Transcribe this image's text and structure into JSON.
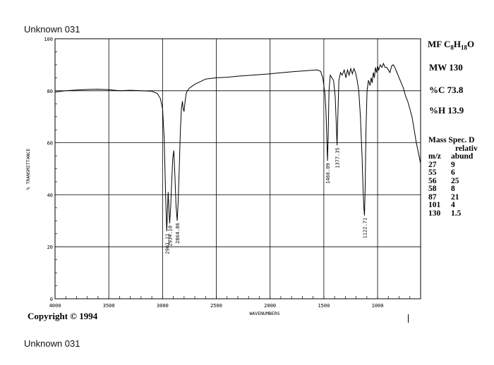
{
  "top_caption": "Unknown 031",
  "bottom_caption": "Unknown 031",
  "copyright": "Copyright  ©  1994",
  "side_panel": {
    "mf_label": "MF C",
    "mf_sub1": "8",
    "mf_mid": "H",
    "mf_sub2": "18",
    "mf_end": "O",
    "mw": "MW 130",
    "pct_c": "%C 73.8",
    "pct_h": "%H 13.9"
  },
  "mass_spec": {
    "title": "Mass Spec. D",
    "col2_header": "relativ",
    "col1_header": "m/z",
    "col2_header2": "abund",
    "rows": [
      {
        "mz": "27",
        "abund": "9"
      },
      {
        "mz": "55",
        "abund": "6"
      },
      {
        "mz": "56",
        "abund": "25"
      },
      {
        "mz": "58",
        "abund": "8"
      },
      {
        "mz": "87",
        "abund": "21"
      },
      {
        "mz": "101",
        "abund": "4"
      },
      {
        "mz": "130",
        "abund": "1.5"
      }
    ]
  },
  "chart_data": {
    "type": "line",
    "xlabel": "WAVENUMBERS",
    "ylabel": "% TRANSMITTANCE",
    "xlim": [
      4000,
      600
    ],
    "ylim": [
      0,
      100
    ],
    "x_ticks": [
      {
        "value": 4000,
        "label": "4000"
      },
      {
        "value": 3500,
        "label": "3500"
      },
      {
        "value": 3000,
        "label": "3000"
      },
      {
        "value": 2500,
        "label": "2500"
      },
      {
        "value": 2000,
        "label": "2000"
      },
      {
        "value": 1500,
        "label": "1500"
      },
      {
        "value": 1000,
        "label": "1000"
      }
    ],
    "y_ticks": [
      {
        "value": 0,
        "label": "0"
      },
      {
        "value": 20,
        "label": "20"
      },
      {
        "value": 40,
        "label": "40"
      },
      {
        "value": 60,
        "label": "60"
      },
      {
        "value": 80,
        "label": "80"
      },
      {
        "value": 100,
        "label": "100"
      }
    ],
    "grid": true,
    "peak_labels": [
      {
        "x": 2961,
        "y": 26,
        "label": "2961.11"
      },
      {
        "x": 2934,
        "y": 29,
        "label": "2934.10"
      },
      {
        "x": 2864,
        "y": 30,
        "label": "2864.86"
      },
      {
        "x": 1466,
        "y": 53,
        "label": "1466.09"
      },
      {
        "x": 1377,
        "y": 59,
        "label": "1377.35"
      },
      {
        "x": 1122,
        "y": 32,
        "label": "1122.71"
      }
    ],
    "series": [
      {
        "color": "#000000",
        "x": [
          4000,
          3900,
          3800,
          3700,
          3600,
          3500,
          3400,
          3300,
          3200,
          3100,
          3050,
          3020,
          3000,
          2985,
          2975,
          2968,
          2961,
          2955,
          2948,
          2940,
          2934,
          2925,
          2915,
          2905,
          2895,
          2885,
          2875,
          2864,
          2855,
          2845,
          2835,
          2825,
          2815,
          2808,
          2800,
          2790,
          2780,
          2770,
          2750,
          2700,
          2650,
          2600,
          2500,
          2400,
          2300,
          2200,
          2100,
          2000,
          1900,
          1800,
          1700,
          1600,
          1560,
          1530,
          1510,
          1490,
          1480,
          1472,
          1466,
          1460,
          1452,
          1440,
          1425,
          1410,
          1395,
          1385,
          1377,
          1370,
          1360,
          1345,
          1330,
          1310,
          1295,
          1280,
          1265,
          1250,
          1235,
          1220,
          1205,
          1190,
          1175,
          1160,
          1145,
          1135,
          1128,
          1122,
          1116,
          1108,
          1098,
          1085,
          1070,
          1060,
          1050,
          1040,
          1030,
          1020,
          1010,
          1000,
          990,
          975,
          960,
          945,
          930,
          915,
          900,
          885,
          870,
          855,
          840,
          820,
          800,
          780,
          760,
          740,
          720,
          700,
          680,
          660,
          640,
          620,
          600
        ],
        "y": [
          79.5,
          80.0,
          80.3,
          80.5,
          80.6,
          80.4,
          80.0,
          80.2,
          80.0,
          79.8,
          79.0,
          77.0,
          73.0,
          62.0,
          45.0,
          35.0,
          26.0,
          33.0,
          41.0,
          34.0,
          29.0,
          35.0,
          45.0,
          54.0,
          57.0,
          47.0,
          36.0,
          30.0,
          37.0,
          50.0,
          64.0,
          73.0,
          76.0,
          73.0,
          72.0,
          76.0,
          79.0,
          80.0,
          81.0,
          82.5,
          83.5,
          84.5,
          85.0,
          85.2,
          85.6,
          85.9,
          86.2,
          86.5,
          86.9,
          87.3,
          87.6,
          87.9,
          88.0,
          87.5,
          85.0,
          79.0,
          72.0,
          62.0,
          53.0,
          62.0,
          80.0,
          86.0,
          85.0,
          84.0,
          78.0,
          68.0,
          59.0,
          70.0,
          84.0,
          87.0,
          86.0,
          88.0,
          85.0,
          88.0,
          86.0,
          88.5,
          86.5,
          88.5,
          87.0,
          84.0,
          80.0,
          70.0,
          55.0,
          42.0,
          35.0,
          32.0,
          42.0,
          65.0,
          80.0,
          84.0,
          82.0,
          85.0,
          83.0,
          87.0,
          85.0,
          89.0,
          87.0,
          89.5,
          88.0,
          90.0,
          89.0,
          90.5,
          89.0,
          89.0,
          88.0,
          87.0,
          89.5,
          90.0,
          89.0,
          87.0,
          85.0,
          83.0,
          81.0,
          78.0,
          76.0,
          73.0,
          70.0,
          65.0,
          60.0,
          56.0,
          52.0
        ]
      }
    ]
  }
}
